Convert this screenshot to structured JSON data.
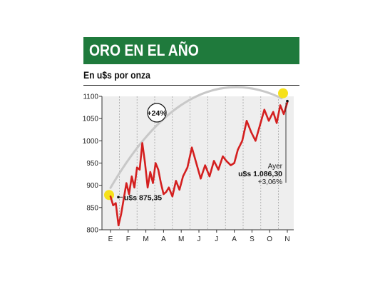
{
  "header": {
    "title": "ORO EN EL AÑO",
    "subtitle": "En u$s por onza"
  },
  "colors": {
    "title_bar": "#1f7a3c",
    "line": "#d41f1f",
    "arc": "#c8c8c8",
    "highlight": "#f6e11a",
    "grid": "#9a9a9a",
    "plot_bg": "#eeeeee"
  },
  "chart_data": {
    "type": "line",
    "title": "ORO EN EL AÑO",
    "subtitle": "En u$s por onza",
    "xlabel": "",
    "ylabel": "",
    "categories": [
      "E",
      "F",
      "M",
      "A",
      "M",
      "J",
      "J",
      "A",
      "S",
      "O",
      "N"
    ],
    "yticks": [
      800,
      850,
      900,
      950,
      1000,
      1050,
      1100
    ],
    "ylim": [
      800,
      1100
    ],
    "grid": "vertical dashed",
    "series": [
      {
        "x": [
          0.0,
          0.15,
          0.3,
          0.45,
          0.6,
          0.75,
          0.9,
          1.05,
          1.2,
          1.35,
          1.5,
          1.65,
          1.8,
          1.95,
          2.1,
          2.25,
          2.4,
          2.55,
          2.7,
          2.85,
          3.0,
          3.15,
          3.3,
          3.5,
          3.7,
          3.9,
          4.1,
          4.35,
          4.6,
          4.85,
          5.1,
          5.35,
          5.6,
          5.85,
          6.1,
          6.35,
          6.55,
          6.8,
          7.0,
          7.2,
          7.45,
          7.7,
          7.95,
          8.2,
          8.45,
          8.7,
          8.95,
          9.2,
          9.4,
          9.6,
          9.8,
          10.0
        ],
        "values": [
          875,
          855,
          860,
          810,
          835,
          870,
          905,
          880,
          920,
          895,
          940,
          935,
          995,
          950,
          895,
          930,
          905,
          950,
          935,
          905,
          880,
          885,
          895,
          875,
          910,
          890,
          920,
          940,
          985,
          950,
          915,
          945,
          920,
          955,
          935,
          965,
          955,
          945,
          950,
          980,
          1000,
          1045,
          1020,
          1000,
          1035,
          1070,
          1045,
          1065,
          1040,
          1080,
          1060,
          1086
        ]
      }
    ],
    "annotations": [
      {
        "label": "u$s 875,35",
        "x": 0,
        "y": 875.35
      },
      {
        "label": "+24%"
      },
      {
        "label": "Ayer",
        "x": 10,
        "y": 1086.3
      },
      {
        "label": "u$s 1.086,30",
        "x": 10,
        "y": 1086.3
      },
      {
        "label": "+3,06%",
        "x": 10,
        "y": 1086.3
      }
    ]
  }
}
